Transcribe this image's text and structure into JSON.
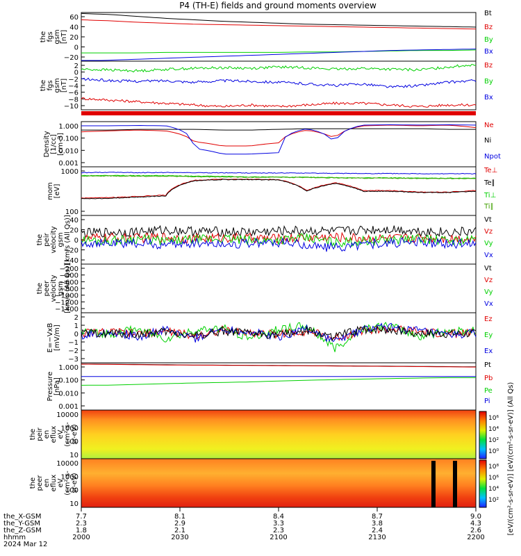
{
  "title": "P4 (TH-E) fields and ground moments overview",
  "colors": {
    "black": "#000000",
    "red": "#e00000",
    "green": "#00d000",
    "blue": "#0000e0",
    "purple": "#8000a0",
    "olive": "#40a000"
  },
  "time_axis": {
    "ticks": [
      "2000",
      "2030",
      "2100",
      "2130",
      "2200"
    ],
    "rows": [
      {
        "label": "the_X-GSM",
        "values": [
          "7.7",
          "8.1",
          "8.4",
          "8.7",
          "9.0"
        ]
      },
      {
        "label": "the_Y-GSM",
        "values": [
          "2.3",
          "2.9",
          "3.3",
          "3.8",
          "4.3"
        ]
      },
      {
        "label": "the_Z-GSM",
        "values": [
          "1.8",
          "2.1",
          "2.3",
          "2.4",
          "2.6"
        ]
      },
      {
        "label": "hhmm",
        "values": [
          "2000",
          "2030",
          "2100",
          "2130",
          "2200"
        ]
      }
    ],
    "date": "2024 Mar 12"
  },
  "colorbar": {
    "label": "[eV/(cm^2-s-sr-eV)] [eV/(cm^2-s-sr-eV)] (All Qs)",
    "ticks_top": [
      "10^6",
      "10^4",
      "10^2",
      "10^0"
    ],
    "ticks_bottom": [
      "10^8",
      "10^6",
      "10^4",
      "10^2"
    ]
  },
  "chart_data": [
    {
      "type": "line",
      "ylabel": [
        "the",
        "fgs",
        "gsm",
        "[nT]"
      ],
      "yticks": [
        "60",
        "40",
        "20",
        "0",
        "−20"
      ],
      "ylim": [
        -30,
        70
      ],
      "series": [
        {
          "name": "Bt",
          "color": "#000000",
          "values": [
            68,
            66,
            62,
            58,
            55,
            52,
            50,
            48,
            46,
            45,
            44,
            43,
            42,
            41,
            40
          ]
        },
        {
          "name": "Bz",
          "color": "#e00000",
          "values": [
            55,
            53,
            50,
            48,
            46,
            45,
            44,
            43,
            42,
            41,
            40,
            39,
            38,
            37,
            36
          ]
        },
        {
          "name": "By",
          "color": "#00d000",
          "values": [
            -13,
            -13,
            -13,
            -12,
            -12,
            -12,
            -12,
            -12,
            -11,
            -11,
            -10,
            -9,
            -8,
            -8,
            -7
          ]
        },
        {
          "name": "Bx",
          "color": "#0000e0",
          "values": [
            -30,
            -28,
            -26,
            -24,
            -22,
            -20,
            -18,
            -16,
            -14,
            -12,
            -10,
            -8,
            -7,
            -6,
            -5
          ]
        }
      ]
    },
    {
      "type": "line",
      "ylabel": [
        "the",
        "fgs",
        "gsm",
        "[nT]"
      ],
      "yticks": [
        "2",
        "0",
        "−2",
        "−4",
        "−6",
        "−8",
        "−10"
      ],
      "ylim": [
        -12,
        3
      ],
      "series": [
        {
          "name": "Bz",
          "color": "#e00000",
          "values": [
            -8.5,
            -9,
            -9.5,
            -10,
            -10.5,
            -11,
            -10.5,
            -11,
            -10.5,
            -10,
            -10,
            -10.5,
            -11,
            -10.5,
            -10.5
          ]
        },
        {
          "name": "By",
          "color": "#00d000",
          "values": [
            0.5,
            0.3,
            0,
            0.5,
            0.8,
            1,
            0.8,
            1.2,
            1,
            0.5,
            0.8,
            0.5,
            0.3,
            1.2,
            2
          ]
        },
        {
          "name": "Bx",
          "color": "#0000e0",
          "values": [
            -2.5,
            -3,
            -3.2,
            -3,
            -3.5,
            -3,
            -3.2,
            -3.5,
            -4,
            -4.5,
            -4,
            -5,
            -4.5,
            -3.5,
            -3
          ]
        }
      ]
    },
    {
      "type": "line",
      "ylabel": [
        "Density",
        "[1/cc]",
        "[cm-3]"
      ],
      "yticks": [
        "1.000",
        "0.100",
        "0.010",
        "0.001"
      ],
      "ylim_log": [
        -3,
        0.2
      ],
      "series": [
        {
          "name": "Ne",
          "color": "#e00000",
          "values": [
            0.3,
            0.35,
            0.4,
            0.35,
            0.06,
            0.03,
            0.03,
            0.05,
            0.4,
            0.1,
            0.8,
            0.9,
            0.8,
            0.9,
            0.6
          ]
        },
        {
          "name": "Ni",
          "color": "#000000",
          "values": [
            0.4,
            0.4,
            0.45,
            0.45,
            0.45,
            0.4,
            0.4,
            0.45,
            0.5,
            0.5,
            0.5,
            0.5,
            0.5,
            0.45,
            0.45
          ]
        },
        {
          "name": "Npot",
          "color": "#0000e0",
          "values": [
            0.8,
            0.8,
            0.85,
            0.8,
            0.02,
            0.008,
            0.008,
            0.01,
            0.5,
            0.03,
            0.9,
            0.95,
            0.9,
            0.95,
            0.9
          ]
        }
      ]
    },
    {
      "type": "line",
      "ylabel": [
        "mom",
        "[eV]"
      ],
      "yticks": [
        "1000",
        "100"
      ],
      "ylim_log": [
        1.5,
        4
      ],
      "series": [
        {
          "name": "Te⊥",
          "color": "#e00000",
          "values": [
            250,
            260,
            300,
            350,
            2000,
            2300,
            2300,
            2200,
            600,
            1500,
            600,
            600,
            500,
            500,
            600
          ]
        },
        {
          "name": "Te∥",
          "color": "#000000",
          "values": [
            230,
            240,
            280,
            320,
            1900,
            2200,
            2200,
            2100,
            550,
            1400,
            550,
            550,
            480,
            480,
            550
          ]
        },
        {
          "name": "Ti⊥",
          "color": "#00d000",
          "values": [
            3500,
            3600,
            3500,
            3500,
            3300,
            3200,
            3000,
            3000,
            2900,
            2800,
            2700,
            2700,
            2600,
            2600,
            2600
          ]
        },
        {
          "name": "Ti∥",
          "color": "#40a000",
          "values": [
            3300,
            3400,
            3300,
            3300,
            3100,
            3000,
            2900,
            2900,
            2800,
            2700,
            2600,
            2600,
            2500,
            2500,
            2500
          ]
        },
        {
          "name": "",
          "color": "#0000e0",
          "values": [
            5000,
            5200,
            5000,
            5100,
            5000,
            4900,
            4800,
            4800,
            4700,
            4600,
            4500,
            4500,
            4400,
            4400,
            4400
          ]
        }
      ]
    },
    {
      "type": "line",
      "ylabel": [
        "the",
        "peir",
        "velocity",
        "gsm",
        "[km/s (All Qs)]"
      ],
      "yticks": [
        "40",
        "20",
        "0",
        "−20",
        "−40"
      ],
      "ylim": [
        -45,
        45
      ],
      "series": [
        {
          "name": "Vt",
          "color": "#000000",
          "values": [
            12,
            14,
            15,
            18,
            16,
            15,
            14,
            16,
            17,
            15,
            18,
            20,
            16,
            14,
            15
          ]
        },
        {
          "name": "Vz",
          "color": "#e00000",
          "values": [
            2,
            4,
            3,
            5,
            2,
            4,
            3,
            2,
            4,
            5,
            3,
            2,
            4,
            3,
            2
          ]
        },
        {
          "name": "Vy",
          "color": "#00d000",
          "values": [
            0,
            -2,
            2,
            -3,
            0,
            2,
            -2,
            0,
            3,
            -5,
            -2,
            0,
            2,
            -2,
            0
          ]
        },
        {
          "name": "Vx",
          "color": "#0000e0",
          "values": [
            -5,
            -8,
            -6,
            -10,
            -5,
            -8,
            -6,
            -5,
            -10,
            -15,
            -8,
            -6,
            -5,
            -8,
            -5
          ]
        }
      ]
    },
    {
      "type": "line",
      "ylabel": [
        "the",
        "peer",
        "velocity",
        "gsm",
        "[km/s (All Qs)]"
      ],
      "yticks": [
        "−200",
        "−400",
        "−600",
        "−800",
        "−1000",
        "−1200",
        "−1400"
      ],
      "ylim": [
        -1400,
        -150
      ],
      "series": [
        {
          "name": "Vt",
          "color": "#000000",
          "values": []
        },
        {
          "name": "Vz",
          "color": "#e00000",
          "values": []
        },
        {
          "name": "Vy",
          "color": "#00d000",
          "values": []
        },
        {
          "name": "Vx",
          "color": "#0000e0",
          "values": []
        }
      ]
    },
    {
      "type": "line",
      "ylabel": [
        "E=−VxB",
        "[mV/m]"
      ],
      "yticks": [
        "2",
        "1",
        "0",
        "−1",
        "−2",
        "−3"
      ],
      "ylim": [
        -3,
        2.2
      ],
      "series": [
        {
          "name": "Ez",
          "color": "#e00000",
          "values": [
            0.1,
            0.2,
            0,
            0.3,
            -0.2,
            0.4,
            0.1,
            0,
            0.3,
            -0.5,
            0.4,
            0.5,
            0.2,
            0,
            0.1
          ]
        },
        {
          "name": "Ey",
          "color": "#00d000",
          "values": [
            0.2,
            0,
            0.5,
            -0.5,
            0.3,
            0.6,
            -0.4,
            0.5,
            0.8,
            -1.5,
            0.6,
            0.8,
            -0.3,
            0.3,
            0.4
          ]
        },
        {
          "name": "Ex",
          "color": "#0000e0",
          "values": [
            -0.2,
            0.3,
            -0.3,
            0.4,
            -0.5,
            0.5,
            0.2,
            -0.3,
            0.6,
            -0.8,
            0.5,
            0.7,
            0.3,
            -0.2,
            0.1
          ]
        },
        {
          "name": "",
          "color": "#000000",
          "values": [
            0,
            0.1,
            -0.1,
            0.2,
            -0.2,
            0.3,
            0,
            -0.1,
            0.3,
            -0.3,
            0.5,
            0.4,
            0.1,
            0,
            0
          ]
        }
      ]
    },
    {
      "type": "line",
      "ylabel": [
        "Pressure",
        "[nPa]"
      ],
      "yticks": [
        "1.000",
        "0.100",
        "0.010",
        "0.001"
      ],
      "ylim_log": [
        -3.8,
        0.4
      ],
      "series": [
        {
          "name": "Pt",
          "color": "#000000",
          "values": [
            2,
            1.9,
            1.8,
            1.7,
            1.6,
            1.55,
            1.5,
            1.45,
            1.4,
            1.35,
            1.3,
            1.25,
            1.2,
            1.15,
            1.1
          ]
        },
        {
          "name": "Pb",
          "color": "#e00000",
          "values": [
            1.9,
            1.8,
            1.7,
            1.6,
            1.55,
            1.5,
            1.45,
            1.4,
            1.35,
            1.3,
            1.25,
            1.2,
            1.15,
            1.1,
            1.05
          ]
        },
        {
          "name": "Pe",
          "color": "#00d000",
          "values": [
            0.025,
            0.026,
            0.03,
            0.035,
            0.04,
            0.045,
            0.05,
            0.06,
            0.07,
            0.08,
            0.09,
            0.1,
            0.11,
            0.12,
            0.12
          ]
        },
        {
          "name": "Pi",
          "color": "#0000e0",
          "values": [
            0.15,
            0.15,
            0.15,
            0.15,
            0.15,
            0.15,
            0.15,
            0.15,
            0.15,
            0.15,
            0.15,
            0.15,
            0.15,
            0.15,
            0.15
          ]
        }
      ]
    },
    {
      "type": "heatmap",
      "ylabel": [
        "the",
        "peir",
        "en",
        "eflux",
        "eV",
        "(cm^2-s-",
        "sr-eV)"
      ],
      "yticks": [
        "10000",
        "1000",
        "100",
        "10"
      ]
    },
    {
      "type": "heatmap",
      "ylabel": [
        "the",
        "peer",
        "en",
        "eflux",
        "eV",
        "(cm^2-s-",
        "sr-eV)"
      ],
      "yticks": [
        "10000",
        "1000",
        "100",
        "10"
      ]
    }
  ]
}
